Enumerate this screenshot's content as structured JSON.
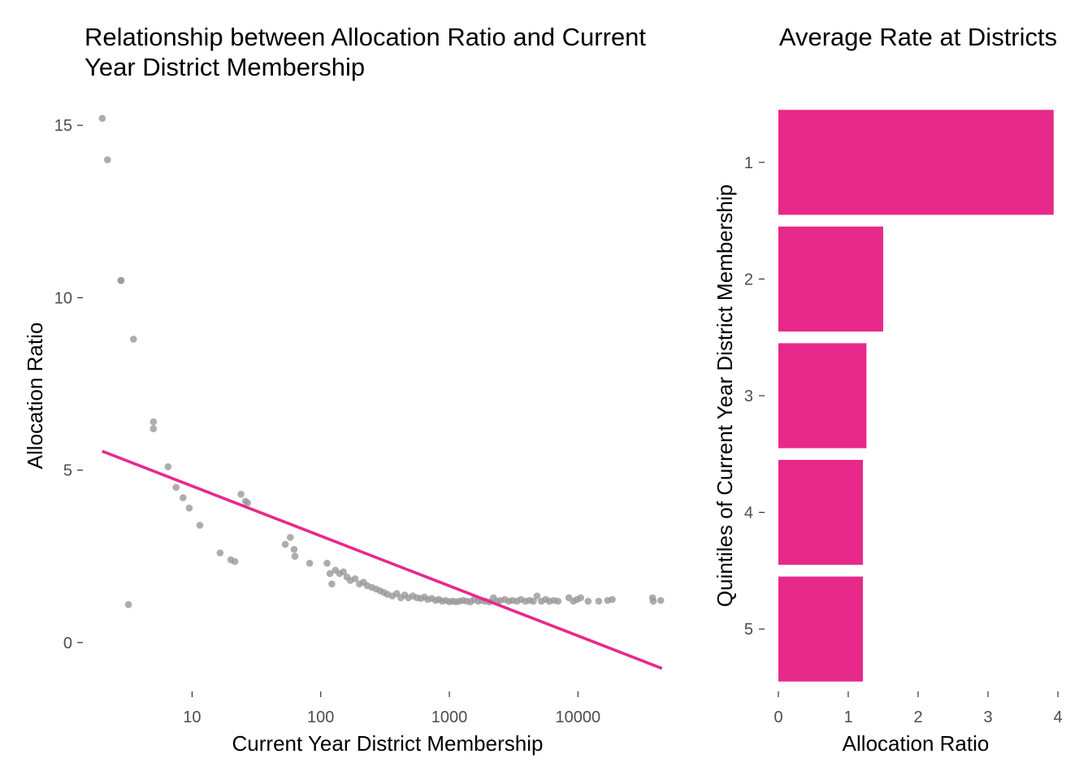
{
  "chart_data": [
    {
      "type": "scatter",
      "title": "Relationship between Allocation Ratio and Current Year District Membership",
      "xlabel": "Current Year District Membership",
      "ylabel": "Allocation Ratio",
      "x_scale": "log10",
      "xlim": [
        1.5,
        50000
      ],
      "ylim": [
        -1.3,
        15.5
      ],
      "xticks": [
        10,
        100,
        1000,
        10000
      ],
      "xtick_labels": [
        "10",
        "100",
        "1000",
        "10000"
      ],
      "yticks": [
        0,
        5,
        10,
        15
      ],
      "ytick_labels": [
        "0",
        "5",
        "10",
        "15"
      ],
      "grid": false,
      "point_color": "#999999",
      "line_color": "#e7298a",
      "trend_line": {
        "x": [
          2,
          45000
        ],
        "y": [
          5.55,
          -0.75
        ]
      },
      "points": [
        {
          "x": 2,
          "y": 15.2
        },
        {
          "x": 2.2,
          "y": 14
        },
        {
          "x": 2.8,
          "y": 10.5
        },
        {
          "x": 2.8,
          "y": 10.5
        },
        {
          "x": 3.2,
          "y": 1.1
        },
        {
          "x": 3.5,
          "y": 8.8
        },
        {
          "x": 5,
          "y": 6.4
        },
        {
          "x": 5,
          "y": 6.2
        },
        {
          "x": 6.5,
          "y": 5.1
        },
        {
          "x": 7.5,
          "y": 4.5
        },
        {
          "x": 8.5,
          "y": 4.2
        },
        {
          "x": 9.5,
          "y": 3.9
        },
        {
          "x": 11.5,
          "y": 3.4
        },
        {
          "x": 16.5,
          "y": 2.6
        },
        {
          "x": 20,
          "y": 2.4
        },
        {
          "x": 21.5,
          "y": 2.35
        },
        {
          "x": 24,
          "y": 4.3
        },
        {
          "x": 26,
          "y": 4.1
        },
        {
          "x": 27,
          "y": 4.05
        },
        {
          "x": 53,
          "y": 2.85
        },
        {
          "x": 58,
          "y": 3.05
        },
        {
          "x": 62,
          "y": 2.7
        },
        {
          "x": 63,
          "y": 2.5
        },
        {
          "x": 82,
          "y": 2.3
        },
        {
          "x": 112,
          "y": 2.3
        },
        {
          "x": 118,
          "y": 2.0
        },
        {
          "x": 122,
          "y": 1.7
        },
        {
          "x": 130,
          "y": 2.1
        },
        {
          "x": 140,
          "y": 2.0
        },
        {
          "x": 150,
          "y": 2.05
        },
        {
          "x": 160,
          "y": 1.9
        },
        {
          "x": 170,
          "y": 1.8
        },
        {
          "x": 185,
          "y": 1.85
        },
        {
          "x": 200,
          "y": 1.7
        },
        {
          "x": 215,
          "y": 1.75
        },
        {
          "x": 230,
          "y": 1.65
        },
        {
          "x": 250,
          "y": 1.6
        },
        {
          "x": 270,
          "y": 1.55
        },
        {
          "x": 290,
          "y": 1.5
        },
        {
          "x": 310,
          "y": 1.45
        },
        {
          "x": 330,
          "y": 1.4
        },
        {
          "x": 360,
          "y": 1.35
        },
        {
          "x": 390,
          "y": 1.42
        },
        {
          "x": 420,
          "y": 1.3
        },
        {
          "x": 450,
          "y": 1.38
        },
        {
          "x": 480,
          "y": 1.3
        },
        {
          "x": 520,
          "y": 1.35
        },
        {
          "x": 560,
          "y": 1.3
        },
        {
          "x": 600,
          "y": 1.28
        },
        {
          "x": 640,
          "y": 1.32
        },
        {
          "x": 680,
          "y": 1.25
        },
        {
          "x": 730,
          "y": 1.28
        },
        {
          "x": 780,
          "y": 1.22
        },
        {
          "x": 830,
          "y": 1.25
        },
        {
          "x": 880,
          "y": 1.2
        },
        {
          "x": 940,
          "y": 1.22
        },
        {
          "x": 1000,
          "y": 1.18
        },
        {
          "x": 1060,
          "y": 1.2
        },
        {
          "x": 1130,
          "y": 1.18
        },
        {
          "x": 1200,
          "y": 1.2
        },
        {
          "x": 1280,
          "y": 1.22
        },
        {
          "x": 1370,
          "y": 1.2
        },
        {
          "x": 1460,
          "y": 1.18
        },
        {
          "x": 1560,
          "y": 1.25
        },
        {
          "x": 1670,
          "y": 1.2
        },
        {
          "x": 1780,
          "y": 1.22
        },
        {
          "x": 1900,
          "y": 1.2
        },
        {
          "x": 2050,
          "y": 1.18
        },
        {
          "x": 2200,
          "y": 1.3
        },
        {
          "x": 2350,
          "y": 1.2
        },
        {
          "x": 2500,
          "y": 1.22
        },
        {
          "x": 2700,
          "y": 1.25
        },
        {
          "x": 2900,
          "y": 1.2
        },
        {
          "x": 3100,
          "y": 1.22
        },
        {
          "x": 3350,
          "y": 1.2
        },
        {
          "x": 3600,
          "y": 1.25
        },
        {
          "x": 3900,
          "y": 1.2
        },
        {
          "x": 4200,
          "y": 1.22
        },
        {
          "x": 4500,
          "y": 1.2
        },
        {
          "x": 4800,
          "y": 1.35
        },
        {
          "x": 5200,
          "y": 1.2
        },
        {
          "x": 5600,
          "y": 1.25
        },
        {
          "x": 6000,
          "y": 1.2
        },
        {
          "x": 6500,
          "y": 1.22
        },
        {
          "x": 7000,
          "y": 1.2
        },
        {
          "x": 8500,
          "y": 1.3
        },
        {
          "x": 9200,
          "y": 1.2
        },
        {
          "x": 9800,
          "y": 1.25
        },
        {
          "x": 10500,
          "y": 1.3
        },
        {
          "x": 12000,
          "y": 1.2
        },
        {
          "x": 14500,
          "y": 1.2
        },
        {
          "x": 17000,
          "y": 1.22
        },
        {
          "x": 18500,
          "y": 1.25
        },
        {
          "x": 38000,
          "y": 1.3
        },
        {
          "x": 38500,
          "y": 1.2
        },
        {
          "x": 44000,
          "y": 1.22
        }
      ]
    },
    {
      "type": "bar",
      "orientation": "horizontal",
      "title": "Average Rate at Districts",
      "xlabel": "Allocation Ratio",
      "ylabel": "Quintiles of Current Year District Membership",
      "categories": [
        "1",
        "2",
        "3",
        "4",
        "5"
      ],
      "values": [
        3.94,
        1.5,
        1.26,
        1.21,
        1.21
      ],
      "xlim": [
        0,
        4.05
      ],
      "xticks": [
        0,
        1,
        2,
        3,
        4
      ],
      "xtick_labels": [
        "0",
        "1",
        "2",
        "3",
        "4"
      ],
      "grid": false,
      "bar_color": "#e7298a"
    }
  ]
}
